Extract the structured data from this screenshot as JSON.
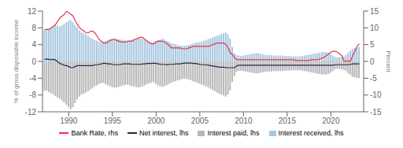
{
  "chart_data": {
    "type": "bar",
    "y_label": "% of gross disposable income",
    "y2_label": "Percent",
    "xlim": [
      1987.0,
      2023.75
    ],
    "xticks": [
      1990,
      1995,
      2000,
      2005,
      2010,
      2015,
      2020
    ],
    "ylim": [
      -12,
      12
    ],
    "yticks": [
      -12,
      -8,
      -4,
      0,
      4,
      8,
      12
    ],
    "y2lim": [
      -15,
      15
    ],
    "y2ticks": [
      -15,
      -10,
      -5,
      0,
      5,
      10,
      15
    ],
    "grid": false,
    "stacked": true,
    "x": [
      1987.25,
      1987.5,
      1987.75,
      1988.0,
      1988.25,
      1988.5,
      1988.75,
      1989.0,
      1989.25,
      1989.5,
      1989.75,
      1990.0,
      1990.25,
      1990.5,
      1990.75,
      1991.0,
      1991.25,
      1991.5,
      1991.75,
      1992.0,
      1992.25,
      1992.5,
      1992.75,
      1993.0,
      1993.25,
      1993.5,
      1993.75,
      1994.0,
      1994.25,
      1994.5,
      1994.75,
      1995.0,
      1995.25,
      1995.5,
      1995.75,
      1996.0,
      1996.25,
      1996.5,
      1996.75,
      1997.0,
      1997.25,
      1997.5,
      1997.75,
      1998.0,
      1998.25,
      1998.5,
      1998.75,
      1999.0,
      1999.25,
      1999.5,
      1999.75,
      2000.0,
      2000.25,
      2000.5,
      2000.75,
      2001.0,
      2001.25,
      2001.5,
      2001.75,
      2002.0,
      2002.25,
      2002.5,
      2002.75,
      2003.0,
      2003.25,
      2003.5,
      2003.75,
      2004.0,
      2004.25,
      2004.5,
      2004.75,
      2005.0,
      2005.25,
      2005.5,
      2005.75,
      2006.0,
      2006.25,
      2006.5,
      2006.75,
      2007.0,
      2007.25,
      2007.5,
      2007.75,
      2008.0,
      2008.25,
      2008.5,
      2008.75,
      2009.0,
      2009.25,
      2009.5,
      2009.75,
      2010.0,
      2010.25,
      2010.5,
      2010.75,
      2011.0,
      2011.25,
      2011.5,
      2011.75,
      2012.0,
      2012.25,
      2012.5,
      2012.75,
      2013.0,
      2013.25,
      2013.5,
      2013.75,
      2014.0,
      2014.25,
      2014.5,
      2014.75,
      2015.0,
      2015.25,
      2015.5,
      2015.75,
      2016.0,
      2016.25,
      2016.5,
      2016.75,
      2017.0,
      2017.25,
      2017.5,
      2017.75,
      2018.0,
      2018.25,
      2018.5,
      2018.75,
      2019.0,
      2019.25,
      2019.5,
      2019.75,
      2020.0,
      2020.25,
      2020.5,
      2020.75,
      2021.0,
      2021.25,
      2021.5,
      2021.75,
      2022.0,
      2022.25,
      2022.5,
      2022.75,
      2023.0,
      2023.25
    ],
    "series": [
      {
        "name": "Bank Rate, rhs",
        "type": "line",
        "axis": "y2",
        "color": "#e8334a",
        "values": [
          9.5,
          9.5,
          9.5,
          10.0,
          10.5,
          11.0,
          12.0,
          13.0,
          13.5,
          14.0,
          15.0,
          14.5,
          14.0,
          13.5,
          12.0,
          11.0,
          10.0,
          9.5,
          9.0,
          8.5,
          8.5,
          9.0,
          9.0,
          8.5,
          7.5,
          6.5,
          6.0,
          5.5,
          5.5,
          5.75,
          6.25,
          6.5,
          6.5,
          6.25,
          6.0,
          5.75,
          5.75,
          5.75,
          6.0,
          6.0,
          6.0,
          6.5,
          6.75,
          7.0,
          7.25,
          7.0,
          6.5,
          6.0,
          5.5,
          5.25,
          5.25,
          5.75,
          6.0,
          6.0,
          6.0,
          5.75,
          5.25,
          4.75,
          4.0,
          4.0,
          4.0,
          4.0,
          4.0,
          3.75,
          3.75,
          3.75,
          4.0,
          4.25,
          4.5,
          4.5,
          4.5,
          4.5,
          4.5,
          4.5,
          4.5,
          4.5,
          4.75,
          5.0,
          5.25,
          5.5,
          5.5,
          5.5,
          5.5,
          5.0,
          4.0,
          2.5,
          2.0,
          1.0,
          0.5,
          0.5,
          0.5,
          0.5,
          0.5,
          0.5,
          0.5,
          0.5,
          0.5,
          0.5,
          0.5,
          0.5,
          0.5,
          0.5,
          0.5,
          0.5,
          0.5,
          0.5,
          0.5,
          0.5,
          0.5,
          0.5,
          0.5,
          0.5,
          0.5,
          0.5,
          0.5,
          0.25,
          0.25,
          0.25,
          0.25,
          0.25,
          0.25,
          0.25,
          0.5,
          0.5,
          0.5,
          0.5,
          0.75,
          1.0,
          1.25,
          1.75,
          2.25,
          2.75,
          3.0,
          3.0,
          2.75,
          2.25,
          1.75,
          0.1,
          0.1,
          0.1,
          0.1,
          1.75,
          3.0,
          4.5,
          5.25
        ]
      },
      {
        "name": "Net interest, lhs",
        "type": "line",
        "color": "#1c2e4a",
        "values": [
          0.5,
          0.6,
          0.5,
          0.4,
          0.5,
          0.3,
          -0.1,
          -0.5,
          -0.7,
          -0.9,
          -1.0,
          -1.2,
          -1.5,
          -1.5,
          -1.2,
          -1.0,
          -1.0,
          -1.0,
          -1.0,
          -1.0,
          -1.0,
          -1.0,
          -1.0,
          -0.8,
          -0.8,
          -0.7,
          -0.6,
          -0.4,
          -0.5,
          -0.6,
          -0.6,
          -0.7,
          -0.8,
          -0.8,
          -0.8,
          -0.7,
          -0.6,
          -0.6,
          -0.6,
          -0.6,
          -0.7,
          -0.7,
          -0.7,
          -0.7,
          -0.7,
          -0.6,
          -0.6,
          -0.5,
          -0.5,
          -0.5,
          -0.4,
          -0.5,
          -0.6,
          -0.7,
          -0.7,
          -0.7,
          -0.8,
          -0.7,
          -0.7,
          -0.7,
          -0.6,
          -0.6,
          -0.6,
          -0.5,
          -0.4,
          -0.4,
          -0.4,
          -0.4,
          -0.5,
          -0.5,
          -0.6,
          -0.7,
          -0.8,
          -0.8,
          -0.8,
          -0.9,
          -1.0,
          -1.1,
          -1.2,
          -1.3,
          -1.4,
          -1.4,
          -1.4,
          -1.5,
          -1.5,
          -1.5,
          -1.5,
          -1.5,
          -1.0,
          -0.9,
          -0.9,
          -0.9,
          -0.9,
          -0.9,
          -0.9,
          -0.9,
          -0.9,
          -0.9,
          -0.9,
          -0.9,
          -0.9,
          -0.9,
          -0.9,
          -0.9,
          -0.9,
          -0.9,
          -0.9,
          -0.9,
          -0.9,
          -0.9,
          -0.9,
          -0.9,
          -0.9,
          -0.9,
          -0.9,
          -0.9,
          -0.9,
          -0.9,
          -0.9,
          -0.9,
          -0.9,
          -0.9,
          -0.9,
          -0.9,
          -0.9,
          -0.9,
          -0.9,
          -0.9,
          -0.9,
          -0.9,
          -0.9,
          -0.9,
          -0.9,
          -0.8,
          -0.8,
          -0.8,
          -0.8,
          -0.8,
          -0.8,
          -0.8,
          -0.7,
          -0.6,
          -0.6,
          -0.6,
          -0.6
        ]
      },
      {
        "name": "Interest paid, lhs",
        "type": "bar",
        "color": "#b8b8b8",
        "values": [
          -7.0,
          -7.0,
          -7.3,
          -7.6,
          -7.8,
          -8.3,
          -8.6,
          -8.8,
          -9.3,
          -9.8,
          -10.3,
          -10.8,
          -11.4,
          -10.9,
          -9.9,
          -9.1,
          -8.4,
          -7.9,
          -7.7,
          -7.4,
          -7.1,
          -6.7,
          -6.4,
          -5.9,
          -5.7,
          -5.4,
          -5.2,
          -5.1,
          -5.4,
          -5.7,
          -5.9,
          -6.1,
          -6.3,
          -6.2,
          -6.1,
          -5.9,
          -5.7,
          -5.6,
          -5.5,
          -5.7,
          -5.9,
          -6.0,
          -6.1,
          -6.2,
          -6.1,
          -5.9,
          -5.7,
          -5.4,
          -5.2,
          -5.1,
          -4.9,
          -5.4,
          -5.7,
          -5.9,
          -6.1,
          -5.9,
          -5.7,
          -5.4,
          -5.1,
          -4.9,
          -4.7,
          -4.5,
          -4.4,
          -4.2,
          -4.1,
          -4.2,
          -4.3,
          -4.5,
          -4.7,
          -4.9,
          -5.1,
          -5.3,
          -5.5,
          -5.7,
          -5.9,
          -6.2,
          -6.5,
          -6.8,
          -7.1,
          -7.4,
          -7.7,
          -7.9,
          -8.1,
          -8.4,
          -7.9,
          -6.9,
          -4.9,
          -3.5,
          -2.5,
          -2.3,
          -2.2,
          -2.3,
          -2.4,
          -2.5,
          -2.6,
          -2.7,
          -2.8,
          -2.9,
          -2.8,
          -2.7,
          -2.6,
          -2.5,
          -2.4,
          -2.4,
          -2.4,
          -2.3,
          -2.3,
          -2.3,
          -2.3,
          -2.3,
          -2.2,
          -2.2,
          -2.2,
          -2.1,
          -2.1,
          -2.1,
          -2.1,
          -2.1,
          -2.2,
          -2.3,
          -2.4,
          -2.5,
          -2.6,
          -2.7,
          -2.8,
          -2.9,
          -3.0,
          -3.1,
          -3.1,
          -3.1,
          -3.0,
          -2.7,
          -2.3,
          -1.9,
          -1.8,
          -1.8,
          -1.9,
          -2.0,
          -2.3,
          -2.8,
          -3.2,
          -3.6,
          -3.8,
          -3.9,
          -4.0
        ]
      },
      {
        "name": "Interest received, lhs",
        "type": "bar",
        "color": "#a8c8e0",
        "values": [
          7.5,
          7.6,
          7.8,
          8.0,
          8.3,
          8.6,
          8.5,
          8.3,
          8.6,
          8.9,
          9.3,
          9.6,
          9.9,
          9.4,
          8.7,
          8.1,
          7.4,
          6.9,
          6.7,
          6.4,
          6.1,
          5.7,
          5.4,
          5.1,
          4.9,
          4.7,
          4.6,
          4.7,
          4.9,
          5.1,
          5.3,
          5.4,
          5.5,
          5.4,
          5.3,
          5.2,
          5.1,
          5.0,
          4.9,
          5.1,
          5.2,
          5.3,
          5.4,
          5.5,
          5.4,
          5.3,
          5.1,
          4.9,
          4.7,
          4.6,
          4.5,
          4.9,
          5.1,
          5.2,
          5.4,
          5.2,
          4.9,
          4.7,
          4.4,
          4.2,
          4.1,
          3.9,
          3.8,
          3.7,
          3.7,
          3.8,
          3.9,
          4.1,
          4.2,
          4.4,
          4.5,
          4.6,
          4.7,
          4.9,
          5.1,
          5.3,
          5.5,
          5.7,
          5.9,
          6.1,
          6.3,
          6.5,
          6.7,
          6.9,
          6.4,
          5.4,
          3.4,
          2.0,
          1.5,
          1.4,
          1.3,
          1.4,
          1.5,
          1.6,
          1.7,
          1.8,
          1.9,
          2.0,
          1.9,
          1.8,
          1.7,
          1.6,
          1.5,
          1.5,
          1.5,
          1.4,
          1.4,
          1.4,
          1.4,
          1.4,
          1.3,
          1.3,
          1.3,
          1.2,
          1.2,
          1.2,
          1.2,
          1.2,
          1.3,
          1.4,
          1.5,
          1.6,
          1.7,
          1.8,
          1.9,
          2.0,
          2.1,
          2.2,
          2.2,
          2.2,
          2.1,
          1.8,
          1.4,
          1.1,
          1.0,
          1.0,
          1.1,
          1.2,
          1.5,
          2.0,
          2.5,
          3.0,
          3.2,
          3.3,
          3.4
        ]
      }
    ]
  }
}
